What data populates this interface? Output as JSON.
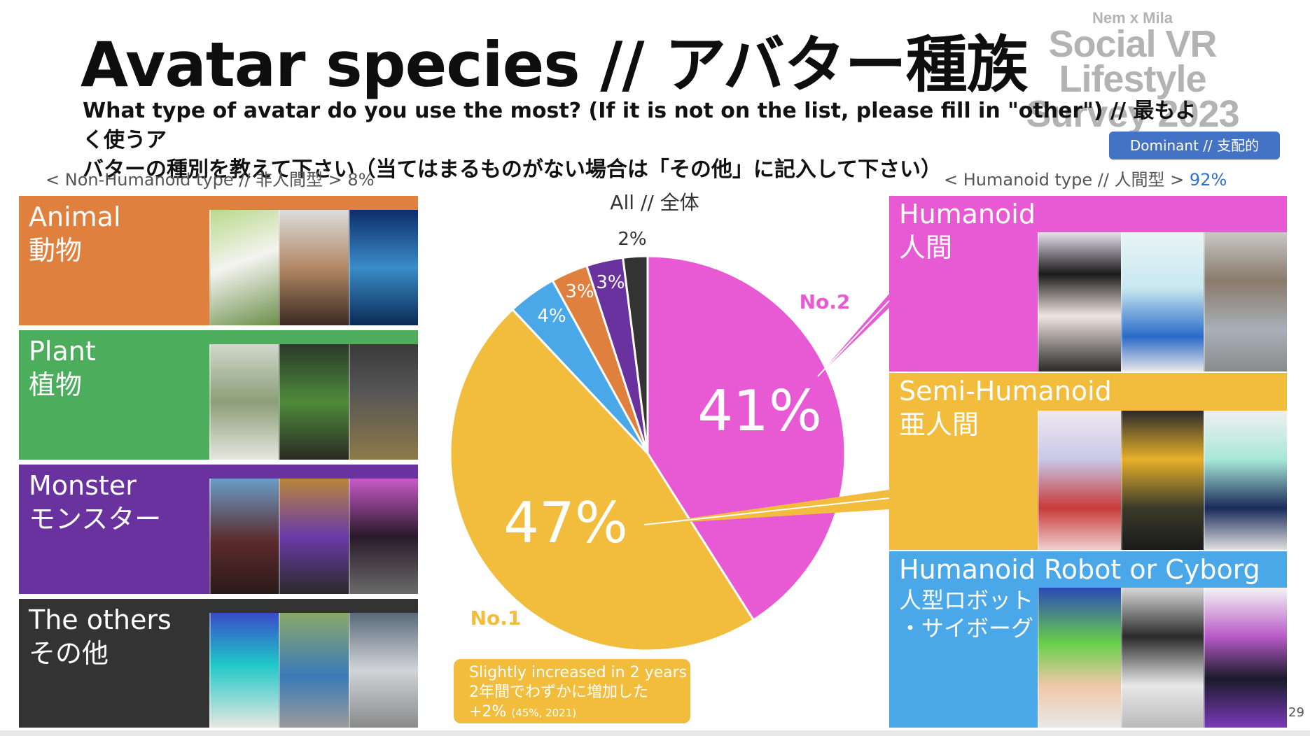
{
  "header": {
    "title": "Avatar species // アバター種族",
    "brand_top": "Nem x Mila",
    "brand_line1": "Social VR Lifestyle",
    "brand_line2": "Survey 2023",
    "question_line1": "What type of avatar do you use the most? (If it is not on the list, please fill in \"other\") // 最もよく使うア",
    "question_line2": "バターの種別を教えて下さい（当てはまるものがない場合は「その他」に記入して下さい）",
    "dominant_badge": "Dominant // 支配的"
  },
  "groups": {
    "non_humanoid": "< Non-Humanoid type // 非人間型 > 8%",
    "humanoid_prefix": "< Humanoid type // 人間型 > ",
    "humanoid_pct": "92%"
  },
  "left_categories": [
    {
      "name_en": "Animal",
      "name_ja": "動物",
      "color": "#e0803e"
    },
    {
      "name_en": "Plant",
      "name_ja": "植物",
      "color": "#4cae5c"
    },
    {
      "name_en": "Monster",
      "name_ja": "モンスター",
      "color": "#6a329f"
    },
    {
      "name_en": "The others",
      "name_ja": "その他",
      "color": "#333333"
    }
  ],
  "right_categories": [
    {
      "name_en": "Humanoid",
      "name_ja": "人間",
      "color": "#e85ad4"
    },
    {
      "name_en": "Semi-Humanoid",
      "name_ja": "亜人間",
      "color": "#f2bc3c"
    },
    {
      "name_en": "Humanoid Robot or Cyborg",
      "name_ja": "人型ロボット\n・サイボーグ",
      "color": "#4aa8e8"
    }
  ],
  "chart_data": {
    "type": "pie",
    "title": "All // 全体",
    "slices": [
      {
        "label": "Humanoid",
        "value": 41,
        "display": "41%",
        "color": "#e85ad4",
        "rank": "No.2"
      },
      {
        "label": "Semi-Humanoid",
        "value": 47,
        "display": "47%",
        "color": "#f2bc3c",
        "rank": "No.1"
      },
      {
        "label": "Humanoid Robot or Cyborg",
        "value": 4,
        "display": "4%",
        "color": "#4aa8e8"
      },
      {
        "label": "Animal",
        "value": 3,
        "display": "3%",
        "color": "#e0803e"
      },
      {
        "label": "Monster",
        "value": 3,
        "display": "3%",
        "color": "#6a329f"
      },
      {
        "label": "The others",
        "value": 2,
        "display": "2%",
        "color": "#333333"
      }
    ]
  },
  "note": {
    "line1": "Slightly increased in 2 years",
    "line2": "2年間でわずかに増加した",
    "line3_main": "+2%",
    "line3_small": "(45%, 2021)"
  },
  "page_number": "29"
}
